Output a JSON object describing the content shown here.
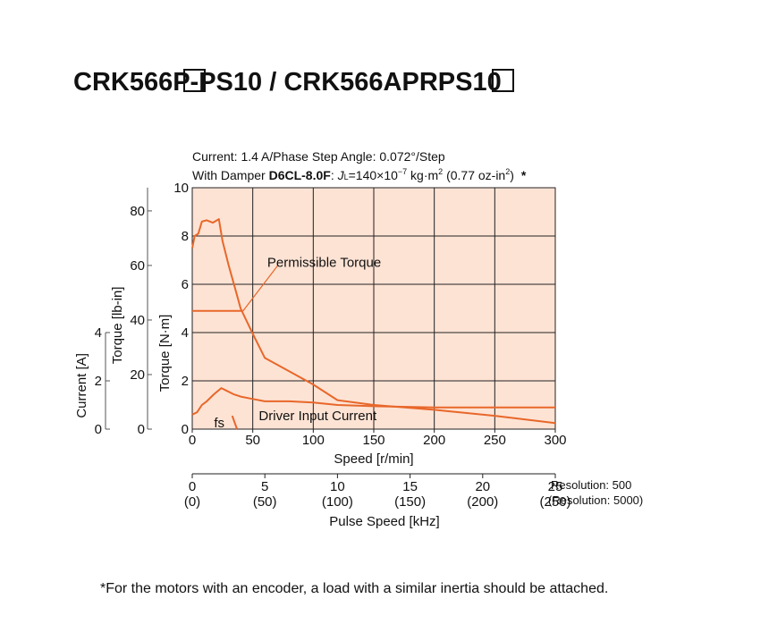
{
  "title": {
    "part1": "CRK566",
    "part2": "P-PS10 / CRK566APR",
    "part3": "PS10"
  },
  "chart_data": {
    "type": "line",
    "conditions_line1": "Current: 1.4 A/Phase  Step Angle: 0.072°/Step",
    "conditions_line2": {
      "prefix": "With Damper ",
      "damper": "D6CL-8.0F",
      "colon": ": ",
      "j": "J",
      "jsub": "L",
      "eq": "=140×10",
      "exp": "−7",
      "unit": " kg·m",
      "unit_exp": "2",
      "oz": " (0.77 oz-in",
      "oz_exp": "2",
      "close": ")",
      "asterisk": "*"
    },
    "x_axis": {
      "label": "Speed [r/min]",
      "range": [
        0,
        300
      ],
      "ticks": [
        "0",
        "50",
        "100",
        "150",
        "200",
        "250",
        "300"
      ]
    },
    "y_axis_nm": {
      "label": "Torque [N·m]",
      "range": [
        0,
        10
      ],
      "ticks": [
        "0",
        "2",
        "4",
        "6",
        "8",
        "10"
      ]
    },
    "y_axis_lbin": {
      "label": "Torque [lb-in]",
      "ticks": [
        "0",
        "20",
        "40",
        "60",
        "80"
      ],
      "tick_values_nm": [
        0,
        2.26,
        4.52,
        6.78,
        9.04
      ]
    },
    "y_axis_current": {
      "label": "Current [A]",
      "ticks": [
        "0",
        "2",
        "4"
      ],
      "tick_values_nm": [
        0,
        2,
        4
      ]
    },
    "pulse_axis": {
      "label": "Pulse Speed [kHz]",
      "ticks": [
        "0",
        "5",
        "10",
        "15",
        "20",
        "25"
      ],
      "sub_ticks": [
        "(0)",
        "(50)",
        "(100)",
        "(150)",
        "(200)",
        "(250)"
      ],
      "tick_speeds": [
        0,
        60,
        120,
        180,
        240,
        300
      ],
      "resolution_500": "Resolution: 500",
      "resolution_5000": "(Resolution: 5000)"
    },
    "series": [
      {
        "name": "Permissible Torque",
        "x": [
          0,
          42
        ],
        "y": [
          4.9,
          4.9
        ]
      },
      {
        "x": [
          0,
          2,
          5,
          8,
          12,
          17,
          22,
          25,
          30,
          35,
          40,
          50,
          60,
          80,
          100,
          120,
          150,
          200,
          250,
          300
        ],
        "y": [
          7.5,
          8.0,
          8.1,
          8.6,
          8.65,
          8.55,
          8.7,
          7.8,
          6.8,
          5.9,
          5.0,
          3.95,
          2.95,
          2.4,
          1.85,
          1.2,
          1.0,
          0.8,
          0.55,
          0.25
        ]
      },
      {
        "name": "Driver Input Current",
        "x": [
          0,
          4,
          8,
          12,
          18,
          24,
          28,
          34,
          40,
          50,
          60,
          80,
          100,
          120,
          150,
          200,
          250,
          300
        ],
        "y": [
          0.6,
          0.7,
          1.0,
          1.15,
          1.45,
          1.7,
          1.6,
          1.45,
          1.35,
          1.25,
          1.15,
          1.15,
          1.1,
          1.0,
          0.95,
          0.9,
          0.9,
          0.9
        ]
      },
      {
        "name": "fs",
        "x": [
          33,
          37
        ],
        "y": [
          0.55,
          0
        ]
      }
    ],
    "annotations": {
      "permissible_torque": "Permissible Torque",
      "driver_input_current": "Driver Input Current",
      "fs": "fs"
    },
    "grid": true,
    "colors": {
      "curve": "#e8672a",
      "background": "#fde3d4",
      "grid": "#222222"
    }
  },
  "footnote": "*For the motors with an encoder, a load with a similar inertia should be attached."
}
